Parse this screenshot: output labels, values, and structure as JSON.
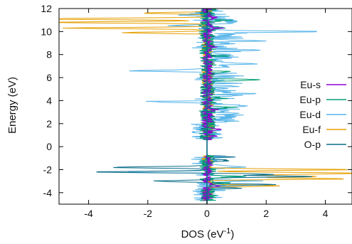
{
  "chart_data": {
    "type": "line",
    "title": "",
    "xlabel": "DOS (eV",
    "xlabel_sup": "-1",
    "xlabel_tail": ")",
    "ylabel": "Energy (eV)",
    "xlim": [
      -5,
      4.9
    ],
    "ylim": [
      -5,
      12
    ],
    "xticks": [
      -4,
      -2,
      0,
      2,
      4
    ],
    "yticks": [
      -4,
      -2,
      0,
      2,
      4,
      6,
      8,
      10,
      12
    ],
    "grid": false,
    "legend": "right-middle",
    "series": [
      {
        "name": "Eu-s",
        "color": "#9400d3"
      },
      {
        "name": "Eu-p",
        "color": "#009e73"
      },
      {
        "name": "Eu-d",
        "color": "#56b4e9"
      },
      {
        "name": "Eu-f",
        "color": "#e69f00"
      },
      {
        "name": "O-p",
        "color": "#0b6e8a"
      }
    ]
  }
}
